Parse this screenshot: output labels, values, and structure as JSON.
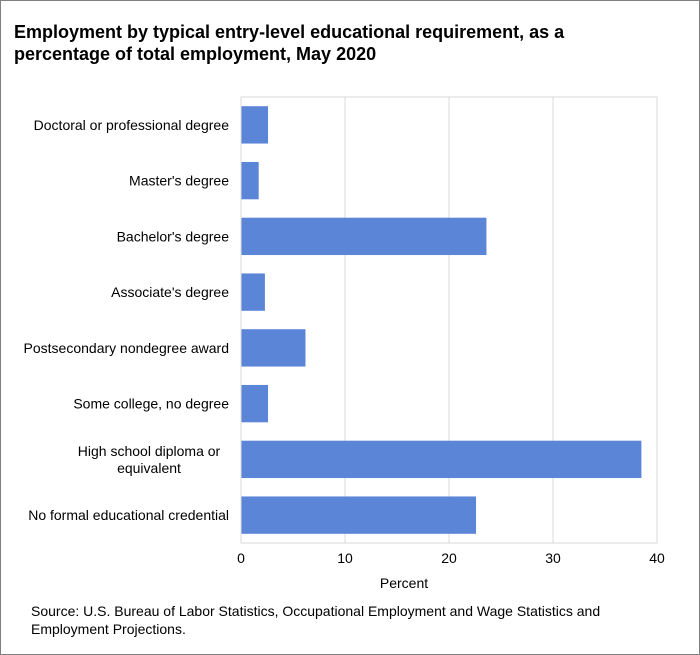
{
  "chart_data": {
    "type": "bar",
    "orientation": "horizontal",
    "title": "Employment  by typical entry-level educational requirement, as a\npercentage of total employment,  May 2020",
    "xlabel": "Percent",
    "ylabel": "",
    "xlim": [
      0,
      40
    ],
    "xticks": [
      "0",
      "10",
      "20",
      "30",
      "40"
    ],
    "grid": "vertical",
    "categories": [
      "Doctoral or professional degree",
      "Master's degree",
      "Bachelor's degree",
      "Associate's degree",
      "Postsecondary nondegree award",
      "Some college, no degree",
      "High school diploma or\nequivalent",
      "No formal educational credential"
    ],
    "values": [
      2.6,
      1.7,
      23.6,
      2.3,
      6.2,
      2.6,
      38.5,
      22.6
    ],
    "bar_color": "#5b86d8"
  },
  "source": "Source: U.S. Bureau of Labor Statistics, Occupational Employment  and Wage Statistics and Employment  Projections."
}
